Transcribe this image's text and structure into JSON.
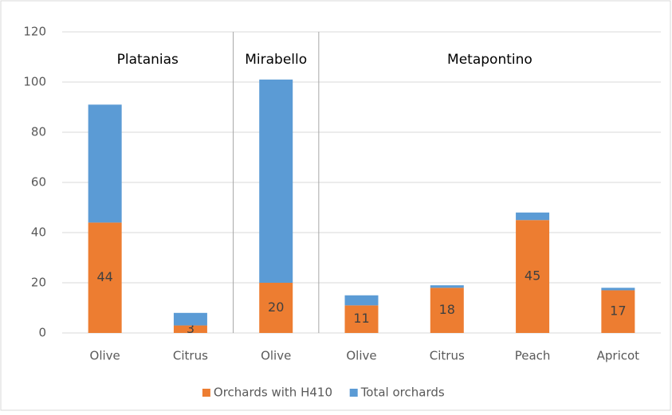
{
  "chart_data": {
    "type": "stacked_bar",
    "groups": [
      {
        "name": "Platanias",
        "categories": [
          "Olive",
          "Citrus"
        ]
      },
      {
        "name": "Mirabello",
        "categories": [
          "Olive"
        ]
      },
      {
        "name": "Metapontino",
        "categories": [
          "Olive",
          "Citrus",
          "Peach",
          "Apricot"
        ]
      }
    ],
    "series": [
      {
        "name": "Orchards with H410",
        "color": "#ED7D31",
        "values": [
          44,
          3,
          20,
          11,
          18,
          45,
          17
        ],
        "data_labels": true
      },
      {
        "name": "Total orchards",
        "color": "#5B9BD5",
        "values": [
          47,
          5,
          81,
          4,
          1,
          3,
          1
        ]
      }
    ],
    "ylim": [
      0,
      120
    ],
    "yticks": [
      0,
      20,
      40,
      60,
      80,
      100,
      120
    ],
    "grid": true,
    "legend": "bottom"
  }
}
